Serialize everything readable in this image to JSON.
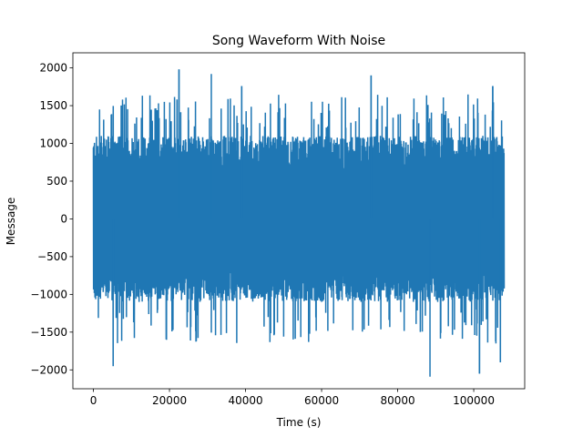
{
  "chart_data": {
    "type": "line",
    "title": "Song Waveform With Noise",
    "xlabel": "Time (s)",
    "ylabel": "Message",
    "xlim": [
      -5400,
      113400
    ],
    "ylim": [
      -2250,
      2200
    ],
    "x_ticks": [
      0,
      20000,
      40000,
      60000,
      80000,
      100000
    ],
    "x_tick_labels": [
      "0",
      "20000",
      "40000",
      "60000",
      "80000",
      "100000"
    ],
    "y_ticks": [
      -2000,
      -1500,
      -1000,
      -500,
      0,
      500,
      1000,
      1500,
      2000
    ],
    "y_tick_labels": [
      "−2000",
      "−1500",
      "−1000",
      "−500",
      "0",
      "500",
      "1000",
      "1500",
      "2000"
    ],
    "grid": false,
    "legend": "none",
    "series": [
      {
        "color": "#1f77b4",
        "x_range": [
          0,
          108000
        ],
        "typical_band": [
          -1000,
          1000
        ],
        "peaks": [
          {
            "x": 22500,
            "y": 1980
          },
          {
            "x": 31000,
            "y": 1920
          },
          {
            "x": 39000,
            "y": 1760
          },
          {
            "x": 73000,
            "y": 1900
          },
          {
            "x": 105000,
            "y": 1760
          },
          {
            "x": 5200,
            "y": -1950
          },
          {
            "x": 88500,
            "y": -2090
          },
          {
            "x": 101500,
            "y": -2050
          },
          {
            "x": 107000,
            "y": -1900
          }
        ]
      }
    ]
  }
}
